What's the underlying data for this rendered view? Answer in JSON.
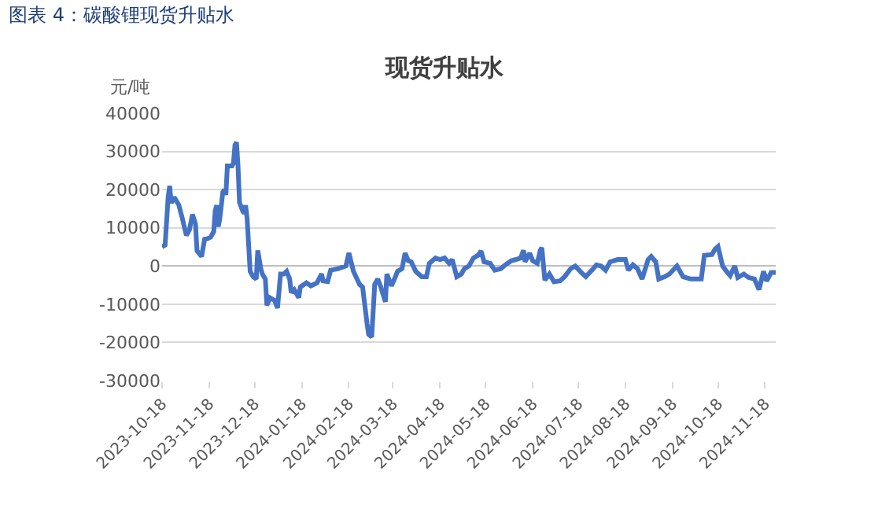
{
  "chart_data": {
    "type": "line",
    "title": "图表 4：碳酸锂现货升贴水",
    "subtitle": "现货升贴水",
    "ylabel": "元/吨",
    "x": [
      "2023-10-18",
      "2023-10-20",
      "2023-10-22",
      "2023-10-23",
      "2023-10-24",
      "2023-10-26",
      "2023-10-29",
      "2023-10-31",
      "2023-11-03",
      "2023-11-05",
      "2023-11-07",
      "2023-11-09",
      "2023-11-10",
      "2023-11-13",
      "2023-11-15",
      "2023-11-17",
      "2023-11-19",
      "2023-11-21",
      "2023-11-22",
      "2023-11-23",
      "2023-11-24",
      "2023-11-25",
      "2023-11-27",
      "2023-11-28",
      "2023-11-29",
      "2023-11-30",
      "2023-12-03",
      "2023-12-04",
      "2023-12-05",
      "2023-12-06",
      "2023-12-07",
      "2023-12-08",
      "2023-12-10",
      "2023-12-11",
      "2023-12-12",
      "2023-12-13",
      "2023-12-15",
      "2023-12-17",
      "2023-12-19",
      "2023-12-20",
      "2023-12-22",
      "2023-12-23",
      "2023-12-25",
      "2023-12-26",
      "2023-12-28",
      "2023-12-31",
      "2024-01-02",
      "2024-01-04",
      "2024-01-06",
      "2024-01-08",
      "2024-01-10",
      "2024-01-11",
      "2024-01-13",
      "2024-01-16",
      "2024-01-17",
      "2024-01-21",
      "2024-01-24",
      "2024-01-28",
      "2024-01-31",
      "2024-02-01",
      "2024-02-04",
      "2024-02-06",
      "2024-02-11",
      "2024-02-16",
      "2024-02-18",
      "2024-02-21",
      "2024-02-25",
      "2024-02-27",
      "2024-03-01",
      "2024-03-02",
      "2024-03-04",
      "2024-03-06",
      "2024-03-08",
      "2024-03-10",
      "2024-03-13",
      "2024-03-14",
      "2024-03-17",
      "2024-03-19",
      "2024-03-21",
      "2024-03-24",
      "2024-03-26",
      "2024-03-28",
      "2024-03-30",
      "2024-04-02",
      "2024-04-06",
      "2024-04-09",
      "2024-04-11",
      "2024-04-15",
      "2024-04-18",
      "2024-04-21",
      "2024-04-24",
      "2024-04-26",
      "2024-04-29",
      "2024-05-02",
      "2024-05-04",
      "2024-05-07",
      "2024-05-10",
      "2024-05-13",
      "2024-05-15",
      "2024-05-17",
      "2024-05-21",
      "2024-05-24",
      "2024-05-28",
      "2024-05-31",
      "2024-06-04",
      "2024-06-07",
      "2024-06-10",
      "2024-06-12",
      "2024-06-13",
      "2024-06-16",
      "2024-06-18",
      "2024-06-21",
      "2024-06-23",
      "2024-06-24",
      "2024-06-26",
      "2024-06-29",
      "2024-07-02",
      "2024-07-06",
      "2024-07-09",
      "2024-07-13",
      "2024-07-16",
      "2024-07-20",
      "2024-07-23",
      "2024-07-27",
      "2024-07-30",
      "2024-08-02",
      "2024-08-05",
      "2024-08-08",
      "2024-08-13",
      "2024-08-18",
      "2024-08-20",
      "2024-08-23",
      "2024-08-26",
      "2024-08-29",
      "2024-09-02",
      "2024-09-04",
      "2024-09-07",
      "2024-09-09",
      "2024-09-13",
      "2024-09-16",
      "2024-09-21",
      "2024-09-25",
      "2024-09-30",
      "2024-10-07",
      "2024-10-09",
      "2024-10-14",
      "2024-10-16",
      "2024-10-18",
      "2024-10-21",
      "2024-10-23",
      "2024-10-26",
      "2024-10-29",
      "2024-10-31",
      "2024-11-04",
      "2024-11-07",
      "2024-11-11",
      "2024-11-14",
      "2024-11-17",
      "2024-11-19",
      "2024-11-22",
      "2024-11-25"
    ],
    "series": [
      {
        "color": "#4472c4",
        "values": [
          5000,
          5500,
          18000,
          21000,
          16500,
          18000,
          16000,
          13000,
          8000,
          9500,
          13500,
          11000,
          4000,
          2500,
          7000,
          7200,
          7600,
          9000,
          14500,
          15900,
          10300,
          12400,
          19300,
          20000,
          18600,
          26200,
          26200,
          26900,
          31700,
          32400,
          26200,
          16600,
          14500,
          13800,
          15900,
          12400,
          -1400,
          -2800,
          -3400,
          4100,
          -700,
          -2100,
          -3400,
          -10300,
          -8300,
          -9000,
          -11000,
          -2100,
          -2100,
          -1400,
          -3400,
          -6900,
          -6200,
          -8300,
          -5500,
          -4400,
          -5200,
          -4400,
          -2100,
          -3900,
          -4100,
          -1100,
          -700,
          0,
          3400,
          -1400,
          -4800,
          -5500,
          -15200,
          -17900,
          -18600,
          -4800,
          -3400,
          -5500,
          -9400,
          -2100,
          -5200,
          -3400,
          -1400,
          -700,
          3400,
          1400,
          1100,
          -1400,
          -2800,
          -2800,
          700,
          2100,
          1700,
          2100,
          700,
          1700,
          -2800,
          -2100,
          -700,
          0,
          2100,
          2800,
          3900,
          1100,
          700,
          -1100,
          -700,
          300,
          1400,
          1700,
          2100,
          4100,
          1100,
          3400,
          1400,
          700,
          4100,
          4800,
          -3700,
          -2100,
          -4100,
          -3900,
          -2800,
          -700,
          0,
          -1700,
          -2800,
          -1100,
          300,
          0,
          -1100,
          1100,
          1700,
          1700,
          -1100,
          300,
          -700,
          -3400,
          1700,
          2500,
          1100,
          -3400,
          -2800,
          -2100,
          0,
          -2800,
          -3400,
          -3400,
          2800,
          3000,
          4400,
          5100,
          0,
          -1100,
          -2500,
          0,
          -3000,
          -2100,
          -3000,
          -3400,
          -6200,
          -1400,
          -3900,
          -1700,
          -1700
        ]
      }
    ],
    "xlim": [
      "2023-10-18",
      "2024-11-25"
    ],
    "xticks": [
      "2023-10-18",
      "2023-11-18",
      "2023-12-18",
      "2024-01-18",
      "2024-02-18",
      "2024-03-18",
      "2024-04-18",
      "2024-05-18",
      "2024-06-18",
      "2024-07-18",
      "2024-08-18",
      "2024-09-18",
      "2024-10-18",
      "2024-11-18"
    ],
    "ylim": [
      -30000,
      40000
    ],
    "yticks": [
      -30000,
      -20000,
      -10000,
      0,
      10000,
      20000,
      30000,
      40000
    ],
    "grid": "y",
    "marker": "none",
    "line_style": "solid"
  }
}
